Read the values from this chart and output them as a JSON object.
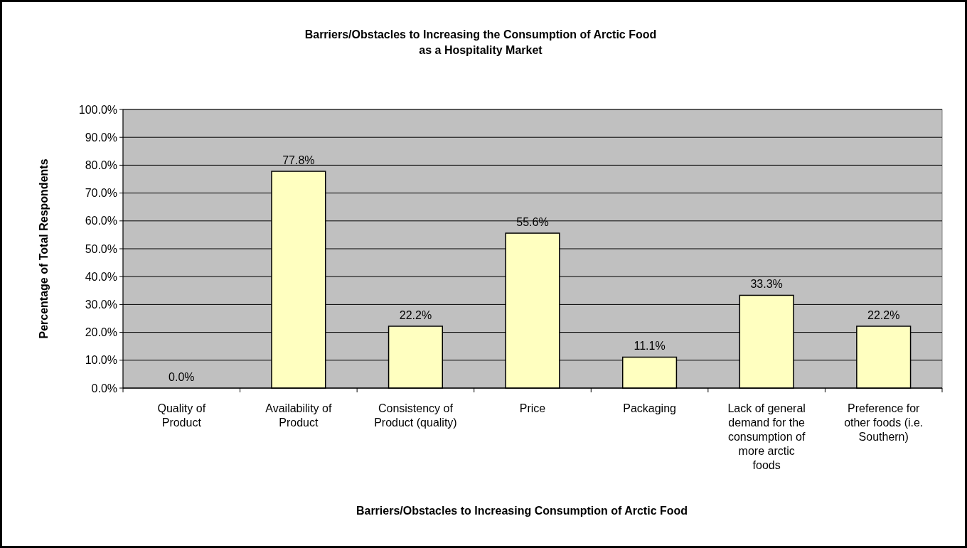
{
  "chart_data": {
    "type": "bar",
    "title": "Barriers/Obstacles to Increasing the Consumption of Arctic Food\nas a Hospitality Market",
    "xlabel": "Barriers/Obstacles to Increasing Consumption of Arctic Food",
    "ylabel": "Percentage of Total Respondents",
    "categories": [
      "Quality of Product",
      "Availability of Product",
      "Consistency of Product (quality)",
      "Price",
      "Packaging",
      "Lack of general demand for the consumption of more arctic foods",
      "Preference for other foods (i.e. Southern)"
    ],
    "values": [
      0,
      77.8,
      22.2,
      55.6,
      11.1,
      33.3,
      22.2
    ],
    "value_labels": [
      "0.0%",
      "77.8%",
      "22.2%",
      "55.6%",
      "11.1%",
      "33.3%",
      "22.2%"
    ],
    "color": "#ffffc0",
    "ylim": [
      0,
      100
    ],
    "yticks": [
      {
        "value": 0,
        "label": "0.0%"
      },
      {
        "value": 10,
        "label": "10.0%"
      },
      {
        "value": 20,
        "label": "20.0%"
      },
      {
        "value": 30,
        "label": "30.0%"
      },
      {
        "value": 40,
        "label": "40.0%"
      },
      {
        "value": 50,
        "label": "50.0%"
      },
      {
        "value": 60,
        "label": "60.0%"
      },
      {
        "value": 70,
        "label": "70.0%"
      },
      {
        "value": 80,
        "label": "80.0%"
      },
      {
        "value": 90,
        "label": "90.0%"
      },
      {
        "value": 100,
        "label": "100.0%"
      }
    ],
    "grid": "y"
  }
}
